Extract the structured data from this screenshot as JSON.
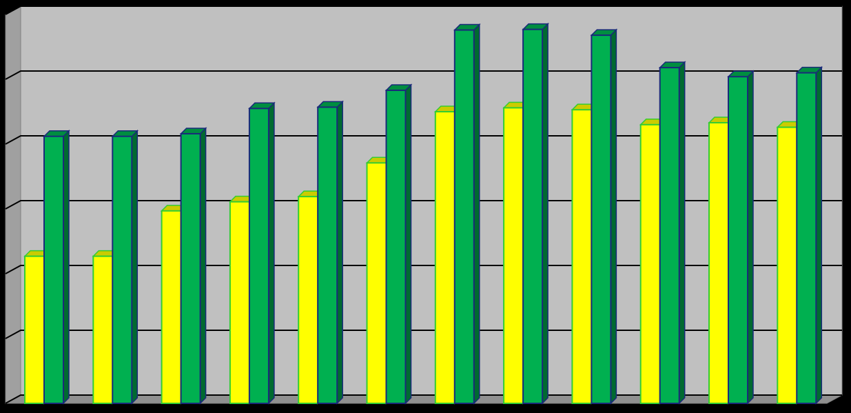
{
  "chart_data": {
    "type": "bar3d",
    "categories": [
      null,
      null,
      null,
      null,
      null,
      null,
      null,
      null,
      null,
      null,
      null,
      null
    ],
    "series": [
      {
        "color": "#ffff00",
        "values": [
          2.27,
          2.27,
          2.97,
          3.11,
          3.19,
          3.71,
          4.5,
          4.56,
          4.53,
          4.3,
          4.33,
          4.26
        ]
      },
      {
        "color": "#00b050",
        "values": [
          4.12,
          4.12,
          4.16,
          4.55,
          4.57,
          4.83,
          5.76,
          5.77,
          5.68,
          5.18,
          5.04,
          5.1
        ]
      }
    ],
    "ylim": [
      0,
      6
    ],
    "yticks": [
      0,
      1,
      2,
      3,
      4,
      5,
      6
    ],
    "grid": true
  }
}
